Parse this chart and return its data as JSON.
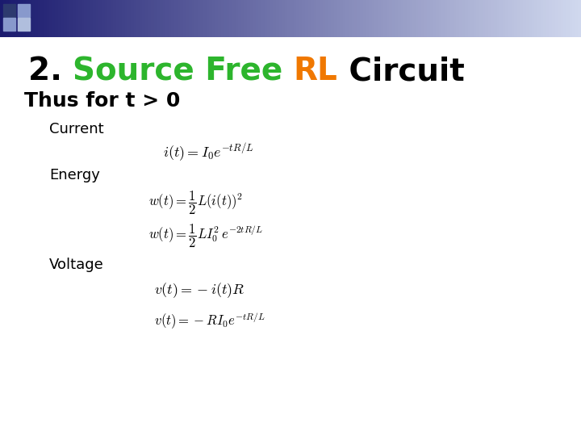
{
  "background_color": "#ffffff",
  "title_2": "2. ",
  "title_source_free": "Source Free ",
  "title_rl": "RL",
  "title_circuit": " Circuit",
  "title_color_2": "#000000",
  "title_color_source_free": "#2db52d",
  "title_color_rl": "#f07800",
  "title_color_circuit": "#000000",
  "subtitle": "Thus for t > 0",
  "label_current": "Current",
  "label_energy": "Energy",
  "label_voltage": "Voltage",
  "eq_current": "$i(t) = I_0 e^{-tR/L}$",
  "eq_energy1": "$w(t) = \\dfrac{1}{2}L(i(t))^2$",
  "eq_energy2": "$w(t) = \\dfrac{1}{2}LI_0^{2}\\,e^{-2tR/L}$",
  "eq_voltage1": "$v(t) = -i(t)R$",
  "eq_voltage2": "$v(t) = -RI_0 e^{-tR/L}$",
  "header_color_left": "#1a1a6e",
  "header_color_right": "#d0d8ee",
  "sq_dark": "#2d3a6e",
  "sq_mid": "#8899cc",
  "sq_light": "#b0bedd"
}
